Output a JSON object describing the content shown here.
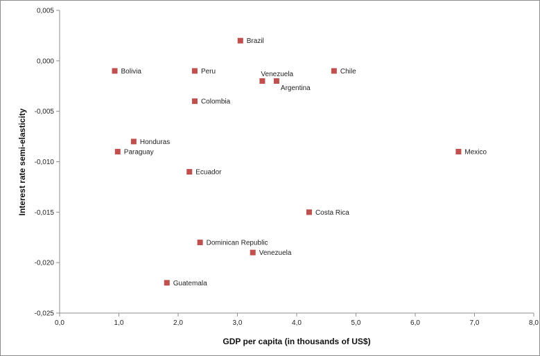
{
  "chart_data": {
    "type": "scatter",
    "xlabel": "GDP per capita (in thousands of US$)",
    "ylabel": "Interest rate semi-elasticity",
    "xlim": [
      0,
      8
    ],
    "ylim": [
      -0.025,
      0.005
    ],
    "x_ticks": [
      "0,0",
      "1,0",
      "2,0",
      "3,0",
      "4,0",
      "5,0",
      "6,0",
      "7,0",
      "8,0"
    ],
    "y_ticks": [
      "0,005",
      "0,000",
      "-0,005",
      "-0,010",
      "-0,015",
      "-0,020",
      "-0,025"
    ],
    "grid": false,
    "marker_color": "#c0504d",
    "points": [
      {
        "label": "Brazil",
        "x": 3.05,
        "y": 0.002
      },
      {
        "label": "Bolivia",
        "x": 0.93,
        "y": -0.001
      },
      {
        "label": "Peru",
        "x": 2.28,
        "y": -0.001
      },
      {
        "label": "Chile",
        "x": 4.63,
        "y": -0.001
      },
      {
        "label": "Venezuela",
        "x": 3.42,
        "y": -0.002
      },
      {
        "label": "Argentina",
        "x": 3.66,
        "y": -0.002
      },
      {
        "label": "Colombia",
        "x": 2.28,
        "y": -0.004
      },
      {
        "label": "Honduras",
        "x": 1.25,
        "y": -0.008
      },
      {
        "label": "Paraguay",
        "x": 0.98,
        "y": -0.009
      },
      {
        "label": "Mexico",
        "x": 6.73,
        "y": -0.009
      },
      {
        "label": "Ecuador",
        "x": 2.19,
        "y": -0.011
      },
      {
        "label": "Costa Rica",
        "x": 4.21,
        "y": -0.015
      },
      {
        "label": "Dominican Republic",
        "x": 2.37,
        "y": -0.018
      },
      {
        "label": "Venezuela",
        "x": 3.26,
        "y": -0.019
      },
      {
        "label": "Guatemala",
        "x": 1.81,
        "y": -0.022
      }
    ]
  }
}
